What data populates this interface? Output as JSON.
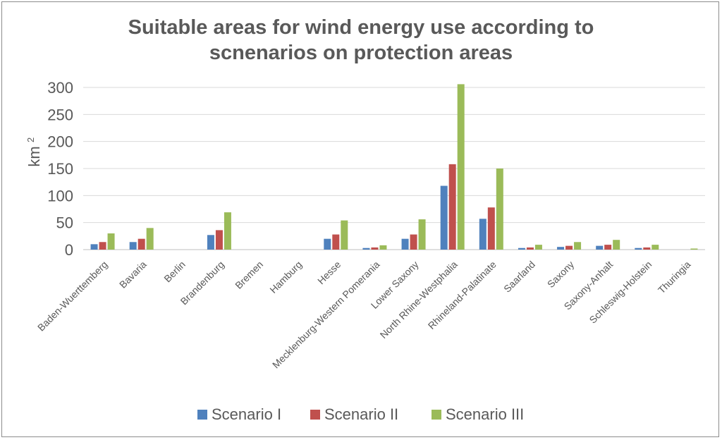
{
  "chart_data": {
    "type": "bar",
    "title_lines": [
      "Suitable areas for wind energy use according to",
      "scnenarios on protection areas"
    ],
    "ylabel": "km",
    "ylabel_superscript": "2",
    "xlabel": "",
    "ylim": [
      0,
      300
    ],
    "yticks": [
      "0",
      "50",
      "100",
      "150",
      "200",
      "250",
      "300"
    ],
    "grid": true,
    "legend_position": "bottom",
    "categories": [
      "Baden-Wuerttemberg",
      "Bavaria",
      "Berlin",
      "Brandenburg",
      "Bremen",
      "Hamburg",
      "Hesse",
      "Mecklenburg-Western Pomerania",
      "Lower Saxony",
      "North Rhine-Westphalia",
      "Rhineland-Palatinate",
      "Saarland",
      "Saxony",
      "Saxony-Anhalt",
      "Schleswig-Holstein",
      "Thuringia"
    ],
    "series": [
      {
        "name": "Scenario I",
        "color": "#4f81bd",
        "values": [
          10,
          14,
          0,
          27,
          0,
          0,
          20,
          3,
          20,
          118,
          57,
          3,
          5,
          7,
          3,
          0
        ]
      },
      {
        "name": "Scenario II",
        "color": "#c0504d",
        "values": [
          14,
          20,
          0,
          36,
          0,
          0,
          28,
          4,
          28,
          158,
          78,
          4,
          7,
          9,
          4,
          0
        ]
      },
      {
        "name": "Scenario III",
        "color": "#9bbb59",
        "values": [
          30,
          40,
          0,
          69,
          0,
          0,
          54,
          8,
          56,
          306,
          150,
          9,
          14,
          18,
          9,
          2
        ]
      }
    ]
  }
}
